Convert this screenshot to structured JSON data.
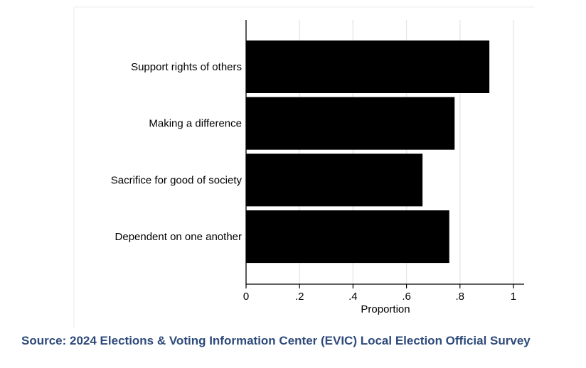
{
  "chart_data": {
    "type": "bar",
    "orientation": "horizontal",
    "categories": [
      "Support rights of others",
      "Making a difference",
      "Sacrifice for good of society",
      "Dependent on one another"
    ],
    "values": [
      0.91,
      0.78,
      0.66,
      0.76
    ],
    "xlabel": "Proportion",
    "ylabel": "",
    "xlim": [
      0,
      1.04
    ],
    "xticks": [
      0,
      0.2,
      0.4,
      0.6,
      0.8,
      1
    ],
    "xtick_labels": [
      "0",
      ".2",
      ".4",
      ".6",
      ".8",
      "1"
    ],
    "grid": "vertical",
    "bar_color": "#000000",
    "grid_color": "#e8e8e8"
  },
  "source_note": "Source: 2024 Elections & Voting Information Center (EVIC) Local Election Official Survey",
  "colors": {
    "source_text": "#2e4a7a"
  }
}
